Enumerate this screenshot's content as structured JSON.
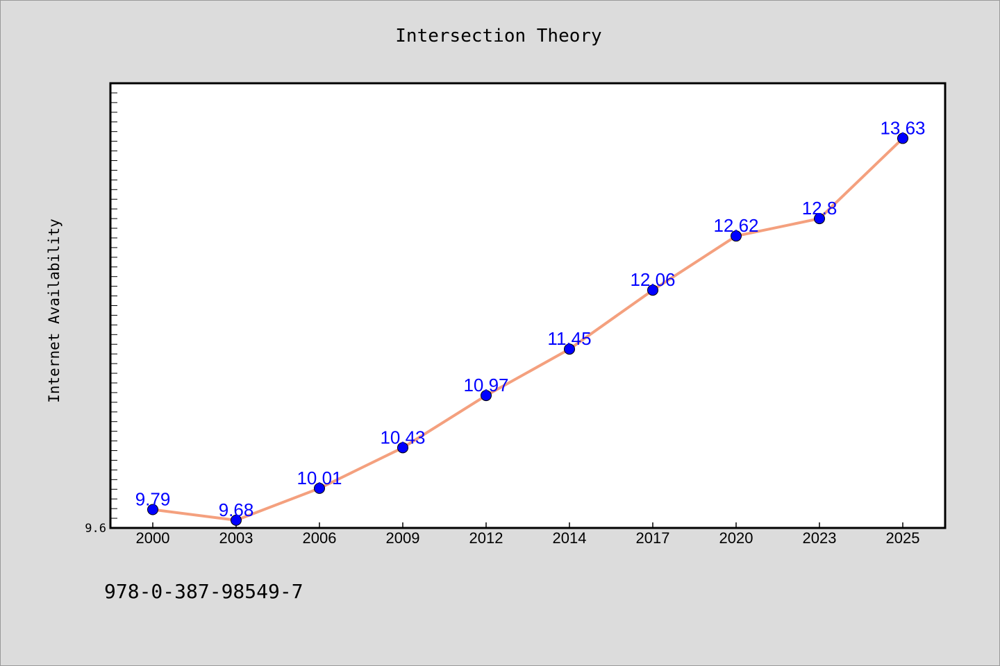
{
  "chart_data": {
    "type": "line",
    "title": "Intersection Theory",
    "xlabel": "",
    "ylabel": "Internet Availability",
    "categories": [
      "2000",
      "2003",
      "2006",
      "2009",
      "2012",
      "2014",
      "2017",
      "2020",
      "2023",
      "2025"
    ],
    "series": [
      {
        "values": [
          9.79,
          9.68,
          10.01,
          10.43,
          10.97,
          11.45,
          12.06,
          12.62,
          12.8,
          13.63
        ],
        "data_labels": [
          "9.79",
          "9.68",
          "10.01",
          "10.43",
          "10.97",
          "11.45",
          "12.06",
          "12.62",
          "12.8",
          "13.63"
        ]
      }
    ],
    "y_tick_labels": [
      "9.6"
    ],
    "ylim": [
      9.6,
      14.2
    ],
    "grid": false,
    "legend": "none",
    "colors": {
      "line": "#f4a07e",
      "marker": "#0000ff",
      "label": "#0000ff",
      "plot_bg": "#ffffff",
      "page_bg": "#dcdcdc"
    }
  },
  "footer": {
    "note": "978-0-387-98549-7"
  }
}
